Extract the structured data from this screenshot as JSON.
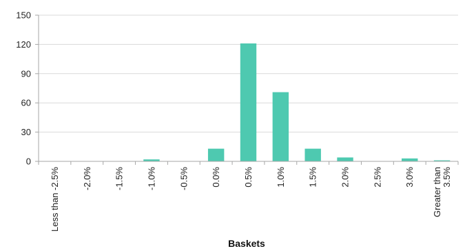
{
  "chart_data": {
    "type": "bar",
    "title": "",
    "xlabel": "Baskets",
    "ylabel": "",
    "ylim": [
      0,
      150
    ],
    "yticks": [
      "0",
      "30",
      "60",
      "90",
      "120",
      "150"
    ],
    "grid": true,
    "legend": "none",
    "bar_color": "#4ec9b0",
    "categories": [
      [
        "Less than -2.5%"
      ],
      [
        "-2.0%"
      ],
      [
        "-1.5%"
      ],
      [
        "-1.0%"
      ],
      [
        "-0.5%"
      ],
      [
        "0.0%"
      ],
      [
        "0.5%"
      ],
      [
        "1.0%"
      ],
      [
        "1.5%"
      ],
      [
        "2.0%"
      ],
      [
        "2.5%"
      ],
      [
        "3.0%"
      ],
      [
        "Greater than",
        "3.5%"
      ]
    ],
    "values": [
      0,
      0,
      0,
      2,
      0,
      13,
      121,
      71,
      13,
      4,
      0,
      3,
      1
    ]
  }
}
